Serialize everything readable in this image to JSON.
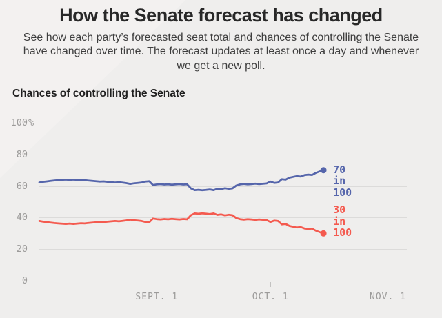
{
  "header": {
    "title": "How the Senate forecast has changed",
    "subtitle": "See how each party’s forecasted seat total and chances of controlling the Senate have changed over time. The forecast updates at least once a day and whenever we get a new poll."
  },
  "colors": {
    "background": "#efeeed",
    "blue_series": "#5565ab",
    "red_series": "#f45a4f",
    "gridline": "#dcdbda",
    "zero_gridline": "#bfbebd",
    "axis_text": "#9c9b9a",
    "title_text": "#282828"
  },
  "chart_data": {
    "type": "line",
    "title": "Chances of controlling the Senate",
    "xlabel": "",
    "ylabel": "",
    "grid": true,
    "legend_position": "end-of-line labels",
    "x_axis": {
      "tick_labels": [
        "SEPT. 1",
        "OCT. 1",
        "NOV. 1"
      ],
      "tick_days": [
        31,
        61,
        92
      ],
      "range_days": [
        0,
        97
      ],
      "note": "x in days; data runs Aug 1 to Oct 15, axis extends to ~Nov 5"
    },
    "y_axis": {
      "tick_values": [
        100,
        80,
        60,
        40,
        20,
        0
      ],
      "tick_labels": [
        "100",
        "80",
        "60",
        "40",
        "20",
        "0"
      ],
      "percent_suffix": "%",
      "range": [
        0,
        100
      ]
    },
    "series": [
      {
        "name": "blue",
        "color": "#5565ab",
        "end_label": [
          "70",
          "in",
          "100"
        ],
        "label_anchor": "first-line-at-dot",
        "values": [
          62.2,
          62.6,
          62.9,
          63.2,
          63.5,
          63.7,
          63.9,
          64.0,
          63.8,
          64.0,
          63.8,
          63.6,
          63.7,
          63.4,
          63.2,
          63.0,
          62.8,
          62.9,
          62.6,
          62.4,
          62.2,
          62.4,
          62.1,
          61.8,
          61.3,
          61.7,
          61.9,
          62.2,
          62.8,
          63.0,
          60.6,
          61.0,
          61.2,
          60.9,
          61.1,
          60.8,
          61.0,
          61.2,
          60.9,
          61.1,
          58.5,
          57.4,
          57.6,
          57.3,
          57.5,
          57.8,
          57.4,
          58.3,
          58.0,
          58.6,
          58.2,
          58.5,
          60.3,
          61.0,
          61.3,
          61.0,
          61.2,
          61.5,
          61.2,
          61.4,
          61.6,
          62.8,
          61.9,
          62.2,
          64.3,
          64.0,
          65.3,
          65.8,
          66.3,
          66.0,
          66.9,
          67.2,
          67.0,
          68.3,
          69.2,
          70.0
        ]
      },
      {
        "name": "red",
        "color": "#f45a4f",
        "end_label": [
          "30",
          "in",
          "100"
        ],
        "label_anchor": "last-line-at-dot",
        "values": [
          37.8,
          37.4,
          37.1,
          36.8,
          36.5,
          36.3,
          36.1,
          36.0,
          36.2,
          36.0,
          36.2,
          36.4,
          36.3,
          36.6,
          36.8,
          37.0,
          37.2,
          37.1,
          37.4,
          37.6,
          37.8,
          37.6,
          37.9,
          38.2,
          38.7,
          38.3,
          38.1,
          37.8,
          37.2,
          37.0,
          39.4,
          39.0,
          38.8,
          39.1,
          38.9,
          39.2,
          39.0,
          38.8,
          39.1,
          38.9,
          41.5,
          42.6,
          42.4,
          42.7,
          42.5,
          42.2,
          42.6,
          41.7,
          42.0,
          41.4,
          41.8,
          41.5,
          39.7,
          39.0,
          38.7,
          39.0,
          38.8,
          38.5,
          38.8,
          38.6,
          38.4,
          37.2,
          38.1,
          37.8,
          35.7,
          36.0,
          34.7,
          34.2,
          33.7,
          34.0,
          33.1,
          32.8,
          33.0,
          31.7,
          30.8,
          30.0
        ]
      }
    ]
  }
}
